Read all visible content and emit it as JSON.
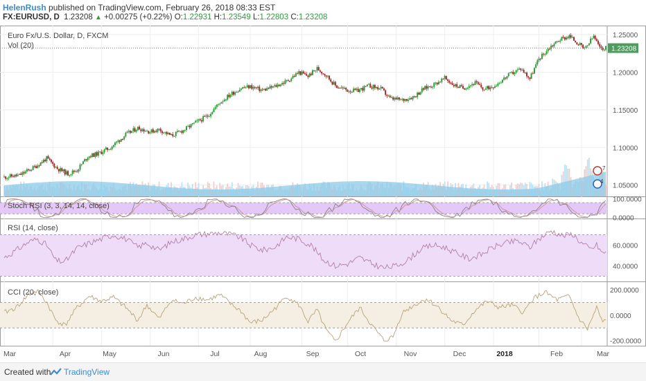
{
  "header": {
    "author": "HelenRush",
    "published": "published on TradingView.com, February 26, 2018 08:33 EST",
    "symbol": "FX:EURUSD, D",
    "last": "1.23208",
    "change": "+0.00275 (+0.22%)",
    "open_label": "O:",
    "open": "1.22931",
    "high_label": "H:",
    "high": "1.23549",
    "low_label": "L:",
    "low": "1.22803",
    "close_label": "C:",
    "close": "1.23208"
  },
  "footer": {
    "created": "Created with",
    "brand": "TradingView"
  },
  "colors": {
    "up": "#2e9c3a",
    "down": "#a12a2a",
    "volume": "#8ccbe8",
    "rsi_band": "#eedcf8",
    "stoch_band": "#e4c8f7",
    "cci_band": "#f4efe2"
  },
  "chart_data": [
    {
      "type": "candlestick",
      "title": "Euro Fx/U.S. Dollar, D, FXCM",
      "overlay_label": "Vol (20)",
      "last_price_label": "1.23208",
      "last_price": 1.23208,
      "ylim": [
        1.035,
        1.262
      ],
      "y_ticks": [
        1.05,
        1.1,
        1.15,
        1.2,
        1.25
      ],
      "y_tick_labels": [
        "1.05000",
        "1.10000",
        "1.15000",
        "1.20000",
        "1.25000"
      ],
      "x_tick_labels": [
        "Mar",
        "Apr",
        "May",
        "Jun",
        "Jul",
        "Aug",
        "Sep",
        "Oct",
        "Nov",
        "Dec",
        "2018",
        "Feb",
        "Mar"
      ],
      "close_path": [
        [
          0,
          1.0605
        ],
        [
          10,
          1.063
        ],
        [
          20,
          1.074
        ],
        [
          28,
          1.0855
        ],
        [
          35,
          1.072
        ],
        [
          42,
          1.065
        ],
        [
          48,
          1.07
        ],
        [
          55,
          1.088
        ],
        [
          62,
          1.092
        ],
        [
          70,
          1.1
        ],
        [
          80,
          1.117
        ],
        [
          88,
          1.126
        ],
        [
          96,
          1.121
        ],
        [
          102,
          1.124
        ],
        [
          110,
          1.1155
        ],
        [
          118,
          1.123
        ],
        [
          126,
          1.133
        ],
        [
          134,
          1.142
        ],
        [
          142,
          1.16
        ],
        [
          150,
          1.172
        ],
        [
          156,
          1.179
        ],
        [
          162,
          1.181
        ],
        [
          170,
          1.176
        ],
        [
          178,
          1.181
        ],
        [
          186,
          1.188
        ],
        [
          194,
          1.2
        ],
        [
          200,
          1.195
        ],
        [
          206,
          1.205
        ],
        [
          212,
          1.196
        ],
        [
          218,
          1.182
        ],
        [
          226,
          1.176
        ],
        [
          232,
          1.175
        ],
        [
          240,
          1.182
        ],
        [
          248,
          1.178
        ],
        [
          254,
          1.165
        ],
        [
          262,
          1.163
        ],
        [
          270,
          1.168
        ],
        [
          276,
          1.178
        ],
        [
          282,
          1.183
        ],
        [
          290,
          1.192
        ],
        [
          296,
          1.183
        ],
        [
          302,
          1.179
        ],
        [
          310,
          1.186
        ],
        [
          316,
          1.177
        ],
        [
          324,
          1.184
        ],
        [
          332,
          1.196
        ],
        [
          340,
          1.205
        ],
        [
          346,
          1.192
        ],
        [
          352,
          1.218
        ],
        [
          360,
          1.235
        ],
        [
          366,
          1.244
        ],
        [
          372,
          1.248
        ],
        [
          378,
          1.238
        ],
        [
          382,
          1.23
        ],
        [
          388,
          1.248
        ],
        [
          392,
          1.232
        ],
        [
          396,
          1.2321
        ]
      ],
      "volume_peaks": [
        [
          370,
          0.55
        ],
        [
          384,
          0.95
        ]
      ]
    },
    {
      "type": "line",
      "title": "Stoch RSI (3, 3, 14, 14, close)",
      "ylim": [
        -5,
        110
      ],
      "y_ticks": [
        0,
        100
      ],
      "y_tick_labels": [
        "0.0000",
        "100.0000"
      ],
      "bands": [
        20,
        80
      ]
    },
    {
      "type": "line",
      "title": "RSI (14, close)",
      "ylim": [
        25,
        85
      ],
      "y_ticks": [
        40,
        60
      ],
      "y_tick_labels": [
        "40.0000",
        "60.0000"
      ],
      "bands": [
        30,
        70
      ],
      "values": [
        [
          0,
          48
        ],
        [
          8,
          55
        ],
        [
          16,
          63
        ],
        [
          22,
          66
        ],
        [
          28,
          60
        ],
        [
          34,
          45
        ],
        [
          40,
          44
        ],
        [
          48,
          57
        ],
        [
          56,
          62
        ],
        [
          64,
          66
        ],
        [
          72,
          70
        ],
        [
          80,
          66
        ],
        [
          88,
          58
        ],
        [
          94,
          62
        ],
        [
          102,
          55
        ],
        [
          110,
          63
        ],
        [
          118,
          66
        ],
        [
          126,
          70
        ],
        [
          134,
          71
        ],
        [
          142,
          72
        ],
        [
          150,
          70
        ],
        [
          156,
          67
        ],
        [
          162,
          60
        ],
        [
          170,
          55
        ],
        [
          178,
          58
        ],
        [
          186,
          68
        ],
        [
          194,
          66
        ],
        [
          202,
          60
        ],
        [
          210,
          46
        ],
        [
          218,
          40
        ],
        [
          226,
          42
        ],
        [
          234,
          48
        ],
        [
          242,
          42
        ],
        [
          250,
          38
        ],
        [
          258,
          40
        ],
        [
          266,
          46
        ],
        [
          274,
          56
        ],
        [
          282,
          60
        ],
        [
          290,
          58
        ],
        [
          298,
          52
        ],
        [
          306,
          47
        ],
        [
          314,
          51
        ],
        [
          322,
          58
        ],
        [
          330,
          62
        ],
        [
          338,
          64
        ],
        [
          346,
          58
        ],
        [
          352,
          66
        ],
        [
          360,
          74
        ],
        [
          368,
          69
        ],
        [
          374,
          71
        ],
        [
          380,
          62
        ],
        [
          386,
          56
        ],
        [
          390,
          60
        ],
        [
          394,
          52
        ],
        [
          396,
          53
        ]
      ]
    },
    {
      "type": "line",
      "title": "CCI (20, close)",
      "ylim": [
        -240,
        260
      ],
      "y_ticks": [
        -200,
        0,
        200
      ],
      "y_tick_labels": [
        "-200.0000",
        "0.0000",
        "200.0000"
      ],
      "bands": [
        -100,
        100
      ],
      "values": [
        [
          0,
          20
        ],
        [
          8,
          60
        ],
        [
          16,
          160
        ],
        [
          22,
          190
        ],
        [
          28,
          100
        ],
        [
          34,
          -40
        ],
        [
          40,
          -80
        ],
        [
          48,
          60
        ],
        [
          56,
          150
        ],
        [
          64,
          110
        ],
        [
          72,
          140
        ],
        [
          80,
          60
        ],
        [
          88,
          -40
        ],
        [
          94,
          80
        ],
        [
          102,
          -30
        ],
        [
          110,
          120
        ],
        [
          118,
          90
        ],
        [
          126,
          140
        ],
        [
          134,
          120
        ],
        [
          142,
          160
        ],
        [
          150,
          80
        ],
        [
          156,
          30
        ],
        [
          162,
          -60
        ],
        [
          170,
          -40
        ],
        [
          178,
          50
        ],
        [
          186,
          150
        ],
        [
          194,
          80
        ],
        [
          200,
          -50
        ],
        [
          206,
          40
        ],
        [
          212,
          -120
        ],
        [
          218,
          -210
        ],
        [
          226,
          -60
        ],
        [
          234,
          60
        ],
        [
          242,
          -80
        ],
        [
          250,
          -200
        ],
        [
          256,
          -170
        ],
        [
          262,
          20
        ],
        [
          270,
          80
        ],
        [
          278,
          130
        ],
        [
          286,
          60
        ],
        [
          294,
          -40
        ],
        [
          302,
          -80
        ],
        [
          310,
          40
        ],
        [
          318,
          110
        ],
        [
          326,
          60
        ],
        [
          334,
          80
        ],
        [
          342,
          20
        ],
        [
          348,
          130
        ],
        [
          356,
          180
        ],
        [
          364,
          120
        ],
        [
          372,
          150
        ],
        [
          378,
          -20
        ],
        [
          384,
          -110
        ],
        [
          390,
          60
        ],
        [
          394,
          -60
        ],
        [
          396,
          -40
        ]
      ]
    }
  ]
}
